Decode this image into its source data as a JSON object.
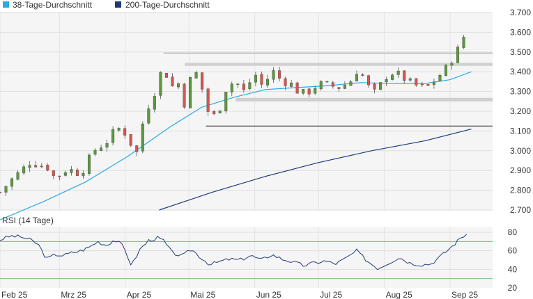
{
  "chart_data": [
    {
      "type": "candlestick",
      "legend": [
        {
          "name": "38-Tage-Durchschnitt",
          "color": "#29abe2"
        },
        {
          "name": "200-Tage-Durchschnitt",
          "color": "#1f3a7a"
        }
      ],
      "ylim": [
        2700,
        3700
      ],
      "yticks": [
        "3.700",
        "3.600",
        "3.500",
        "3.400",
        "3.300",
        "3.200",
        "3.100",
        "3.000",
        "2.900",
        "2.800",
        "2.700"
      ],
      "ytick_values": [
        3700,
        3600,
        3500,
        3400,
        3300,
        3200,
        3100,
        3000,
        2900,
        2800,
        2700
      ],
      "x_months": [
        {
          "label": "Feb 25",
          "day": 0
        },
        {
          "label": "Mrz 25",
          "day": 28
        },
        {
          "label": "Apr 25",
          "day": 59
        },
        {
          "label": "Mai 25",
          "day": 89
        },
        {
          "label": "Jun 25",
          "day": 120
        },
        {
          "label": "Jul 25",
          "day": 150
        },
        {
          "label": "Aug 25",
          "day": 181
        },
        {
          "label": "Sep 25",
          "day": 212
        }
      ],
      "x_range_days": [
        0,
        232
      ],
      "up_color": "#5a9a3c",
      "down_color": "#d9534f",
      "zones": [
        {
          "low": 3430,
          "high": 3445,
          "from_day": 87,
          "to_day": 232
        },
        {
          "low": 3250,
          "high": 3268,
          "from_day": 111,
          "to_day": 232
        }
      ],
      "hlines": [
        {
          "value": 3495,
          "from_day": 77,
          "to_day": 232,
          "color": "#9a9a9a"
        },
        {
          "value": 3125,
          "from_day": 97,
          "to_day": 232,
          "color": "#222222"
        }
      ],
      "ohlc_key_points": [
        {
          "day": 0,
          "close": 2790
        },
        {
          "day": 6,
          "close": 2860
        },
        {
          "day": 14,
          "close": 2940
        },
        {
          "day": 22,
          "close": 2920
        },
        {
          "day": 26,
          "close": 2860
        },
        {
          "day": 32,
          "close": 2910
        },
        {
          "day": 38,
          "close": 2880
        },
        {
          "day": 44,
          "close": 3000
        },
        {
          "day": 50,
          "close": 3040
        },
        {
          "day": 55,
          "close": 3120
        },
        {
          "day": 60,
          "close": 3080
        },
        {
          "day": 64,
          "close": 2970
        },
        {
          "day": 68,
          "close": 3180
        },
        {
          "day": 73,
          "close": 3300
        },
        {
          "day": 77,
          "close": 3440
        },
        {
          "day": 80,
          "close": 3320
        },
        {
          "day": 84,
          "close": 3340
        },
        {
          "day": 87,
          "close": 3230
        },
        {
          "day": 91,
          "close": 3430
        },
        {
          "day": 95,
          "close": 3320
        },
        {
          "day": 99,
          "close": 3160
        },
        {
          "day": 103,
          "close": 3200
        },
        {
          "day": 107,
          "close": 3330
        },
        {
          "day": 111,
          "close": 3350
        },
        {
          "day": 115,
          "close": 3300
        },
        {
          "day": 120,
          "close": 3390
        },
        {
          "day": 124,
          "close": 3320
        },
        {
          "day": 128,
          "close": 3410
        },
        {
          "day": 133,
          "close": 3350
        },
        {
          "day": 137,
          "close": 3340
        },
        {
          "day": 141,
          "close": 3290
        },
        {
          "day": 146,
          "close": 3300
        },
        {
          "day": 150,
          "close": 3340
        },
        {
          "day": 155,
          "close": 3330
        },
        {
          "day": 160,
          "close": 3320
        },
        {
          "day": 165,
          "close": 3350
        },
        {
          "day": 169,
          "close": 3420
        },
        {
          "day": 173,
          "close": 3330
        },
        {
          "day": 177,
          "close": 3290
        },
        {
          "day": 181,
          "close": 3370
        },
        {
          "day": 186,
          "close": 3400
        },
        {
          "day": 191,
          "close": 3360
        },
        {
          "day": 196,
          "close": 3330
        },
        {
          "day": 201,
          "close": 3320
        },
        {
          "day": 206,
          "close": 3370
        },
        {
          "day": 211,
          "close": 3430
        },
        {
          "day": 216,
          "close": 3520
        },
        {
          "day": 221,
          "close": 3640
        }
      ],
      "ma38_points": [
        {
          "day": 0,
          "value": 2650
        },
        {
          "day": 20,
          "value": 2740
        },
        {
          "day": 40,
          "value": 2840
        },
        {
          "day": 60,
          "value": 2970
        },
        {
          "day": 80,
          "value": 3120
        },
        {
          "day": 95,
          "value": 3220
        },
        {
          "day": 110,
          "value": 3270
        },
        {
          "day": 125,
          "value": 3310
        },
        {
          "day": 140,
          "value": 3320
        },
        {
          "day": 155,
          "value": 3330
        },
        {
          "day": 170,
          "value": 3345
        },
        {
          "day": 185,
          "value": 3340
        },
        {
          "day": 200,
          "value": 3340
        },
        {
          "day": 212,
          "value": 3360
        },
        {
          "day": 222,
          "value": 3400
        }
      ],
      "ma200_points": [
        {
          "day": 75,
          "value": 2700
        },
        {
          "day": 100,
          "value": 2790
        },
        {
          "day": 125,
          "value": 2870
        },
        {
          "day": 150,
          "value": 2940
        },
        {
          "day": 175,
          "value": 3000
        },
        {
          "day": 200,
          "value": 3050
        },
        {
          "day": 222,
          "value": 3110
        }
      ]
    },
    {
      "type": "line",
      "title": "RSI (14 Tage)",
      "ylim": [
        20,
        85
      ],
      "yticks": [
        "80",
        "60",
        "40",
        "20"
      ],
      "ytick_values": [
        80,
        60,
        40,
        20
      ],
      "ref_lines": [
        {
          "value": 70,
          "color": "#e08080"
        },
        {
          "value": 30,
          "color": "#80c080"
        }
      ],
      "line_color": "#1f3a7a",
      "points": [
        {
          "day": 0,
          "value": 72
        },
        {
          "day": 5,
          "value": 76
        },
        {
          "day": 10,
          "value": 75
        },
        {
          "day": 14,
          "value": 72
        },
        {
          "day": 18,
          "value": 67
        },
        {
          "day": 22,
          "value": 51
        },
        {
          "day": 26,
          "value": 56
        },
        {
          "day": 30,
          "value": 55
        },
        {
          "day": 34,
          "value": 58
        },
        {
          "day": 38,
          "value": 60
        },
        {
          "day": 42,
          "value": 64
        },
        {
          "day": 46,
          "value": 70
        },
        {
          "day": 50,
          "value": 66
        },
        {
          "day": 54,
          "value": 72
        },
        {
          "day": 58,
          "value": 65
        },
        {
          "day": 62,
          "value": 44
        },
        {
          "day": 66,
          "value": 62
        },
        {
          "day": 70,
          "value": 71
        },
        {
          "day": 74,
          "value": 74
        },
        {
          "day": 77,
          "value": 71
        },
        {
          "day": 81,
          "value": 58
        },
        {
          "day": 86,
          "value": 54
        },
        {
          "day": 90,
          "value": 62
        },
        {
          "day": 95,
          "value": 52
        },
        {
          "day": 99,
          "value": 45
        },
        {
          "day": 103,
          "value": 48
        },
        {
          "day": 108,
          "value": 51
        },
        {
          "day": 113,
          "value": 50
        },
        {
          "day": 118,
          "value": 55
        },
        {
          "day": 123,
          "value": 50
        },
        {
          "day": 128,
          "value": 56
        },
        {
          "day": 133,
          "value": 51
        },
        {
          "day": 138,
          "value": 48
        },
        {
          "day": 143,
          "value": 44
        },
        {
          "day": 148,
          "value": 47
        },
        {
          "day": 153,
          "value": 49
        },
        {
          "day": 158,
          "value": 46
        },
        {
          "day": 163,
          "value": 52
        },
        {
          "day": 168,
          "value": 60
        },
        {
          "day": 173,
          "value": 49
        },
        {
          "day": 178,
          "value": 41
        },
        {
          "day": 183,
          "value": 47
        },
        {
          "day": 188,
          "value": 53
        },
        {
          "day": 193,
          "value": 47
        },
        {
          "day": 198,
          "value": 45
        },
        {
          "day": 203,
          "value": 46
        },
        {
          "day": 208,
          "value": 55
        },
        {
          "day": 213,
          "value": 65
        },
        {
          "day": 217,
          "value": 74
        },
        {
          "day": 221,
          "value": 80
        }
      ]
    }
  ]
}
